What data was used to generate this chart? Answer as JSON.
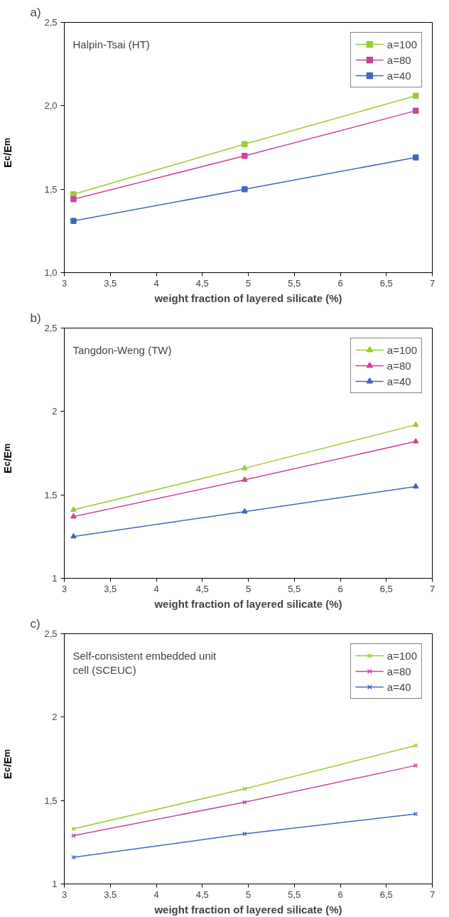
{
  "chart_data": [
    {
      "type": "line",
      "title": "a)",
      "annotations": [
        "Halpin-Tsai (HT)"
      ],
      "xlabel": "weight fraction of layered silicate (%)",
      "ylabel": "E$_{c}$/E$_{m}$",
      "x": [
        3.1,
        4.96,
        6.82
      ],
      "xlim": [
        3,
        7
      ],
      "xticks": [
        3,
        {
          "value": 3.5,
          "label": "3,5"
        },
        4,
        {
          "value": 4.5,
          "label": "4,5"
        },
        5,
        {
          "value": 5.5,
          "label": "5,5"
        },
        6,
        {
          "value": 6.5,
          "label": "6,5"
        },
        7
      ],
      "ylim": [
        1,
        2.5
      ],
      "yticks": [
        {
          "value": 1,
          "label": "1,0"
        },
        {
          "value": 1.5,
          "label": "1,5"
        },
        {
          "value": 2,
          "label": "2,0"
        },
        {
          "value": 2.5,
          "label": "2,5"
        }
      ],
      "marker": "square",
      "grid": false,
      "legend": "top right",
      "series": [
        {
          "name": "a=100",
          "color": "#99cc33",
          "values": [
            1.47,
            1.77,
            2.06
          ]
        },
        {
          "name": "a=80",
          "color": "#cc4499",
          "values": [
            1.44,
            1.7,
            1.97
          ]
        },
        {
          "name": "a=40",
          "color": "#4466bb",
          "values": [
            1.31,
            1.5,
            1.69
          ]
        }
      ]
    },
    {
      "type": "line",
      "title": "b)",
      "annotations": [
        "Tangdon-Weng (TW)"
      ],
      "xlabel": "weight fraction of layered silicate (%)",
      "ylabel": "E$_{c}$/E$_{m}$",
      "x": [
        3.1,
        4.96,
        6.82
      ],
      "xlim": [
        3,
        7
      ],
      "xticks": [
        3,
        {
          "value": 3.5,
          "label": "3,5"
        },
        4,
        {
          "value": 4.5,
          "label": "4,5"
        },
        5,
        {
          "value": 5.5,
          "label": "5,5"
        },
        6,
        {
          "value": 6.5,
          "label": "6,5"
        },
        7
      ],
      "ylim": [
        1,
        2.5
      ],
      "yticks": [
        1,
        {
          "value": 1.5,
          "label": "1,5"
        },
        2,
        {
          "value": 2.5,
          "label": "2,5"
        }
      ],
      "marker": "triangle",
      "grid": false,
      "legend": "top right",
      "series": [
        {
          "name": "a=100",
          "color": "#99cc33",
          "values": [
            1.41,
            1.66,
            1.92
          ]
        },
        {
          "name": "a=80",
          "color": "#cc4499",
          "values": [
            1.37,
            1.59,
            1.82
          ]
        },
        {
          "name": "a=40",
          "color": "#4466bb",
          "values": [
            1.25,
            1.4,
            1.55
          ]
        }
      ]
    },
    {
      "type": "line",
      "title": "c)",
      "annotations": [
        "Self-consistent embedded unit\ncell (SCEUC)"
      ],
      "xlabel": "weight fraction of layered silicate (%)",
      "ylabel": "E$_{c}$/E$_{m}$",
      "x": [
        3.1,
        4.96,
        6.82
      ],
      "xlim": [
        3,
        7
      ],
      "xticks": [
        3,
        {
          "value": 3.5,
          "label": "3,5"
        },
        4,
        {
          "value": 4.5,
          "label": "4,5"
        },
        5,
        {
          "value": 5.5,
          "label": "5,5"
        },
        6,
        {
          "value": 6.5,
          "label": "6,5"
        },
        7
      ],
      "ylim": [
        1,
        2.5
      ],
      "yticks": [
        1,
        {
          "value": 1.5,
          "label": "1,5"
        },
        2,
        {
          "value": 2.5,
          "label": "2,5"
        }
      ],
      "marker": "cross",
      "grid": false,
      "legend": "top right",
      "series": [
        {
          "name": "a=100",
          "color": "#99cc33",
          "values": [
            1.33,
            1.57,
            1.83
          ]
        },
        {
          "name": "a=80",
          "color": "#cc4499",
          "values": [
            1.29,
            1.49,
            1.71
          ]
        },
        {
          "name": "a=40",
          "color": "#4466bb",
          "values": [
            1.16,
            1.3,
            1.42
          ]
        }
      ]
    }
  ]
}
